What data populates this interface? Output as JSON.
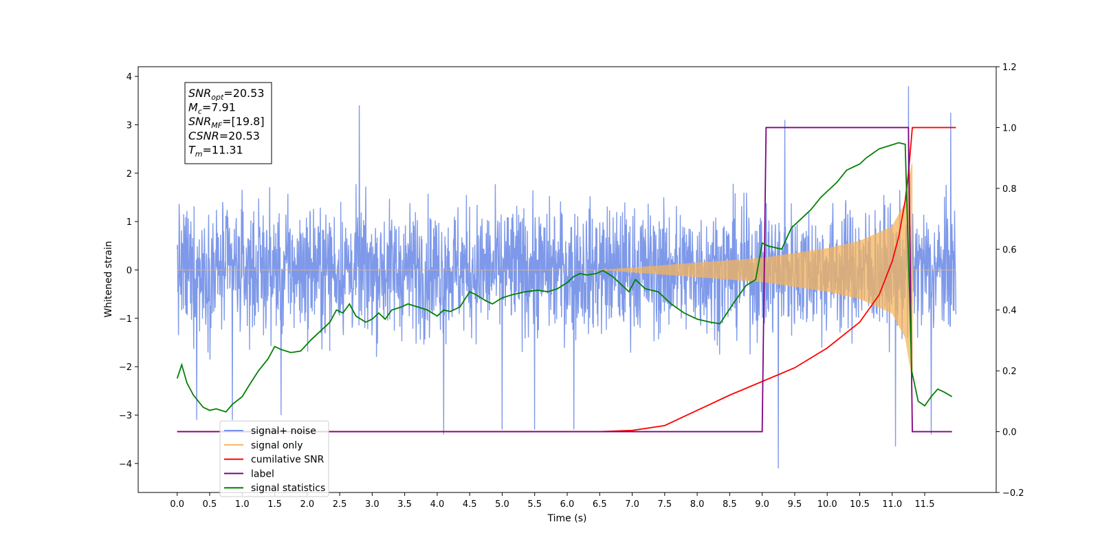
{
  "chart_data": {
    "type": "line",
    "xlabel": "Time (s)",
    "ylabel_left": "Whitened strain",
    "ylabel_right": "",
    "xlim": [
      -0.6,
      12.6
    ],
    "ylim_left": [
      -4.6,
      4.2
    ],
    "ylim_right": [
      -0.2,
      1.2
    ],
    "x_ticks": [
      "0.0",
      "0.5",
      "1.0",
      "1.5",
      "2.0",
      "2.5",
      "3.0",
      "3.5",
      "4.0",
      "4.5",
      "5.0",
      "5.5",
      "6.0",
      "6.5",
      "7.0",
      "7.5",
      "8.0",
      "8.5",
      "9.0",
      "9.5",
      "10.0",
      "10.5",
      "11.0",
      "11.5"
    ],
    "y_ticks_left": [
      "4",
      "3",
      "2",
      "1",
      "0",
      "−1",
      "−2",
      "−3",
      "−4"
    ],
    "y_ticks_right": [
      "1.2",
      "1.0",
      "0.8",
      "0.6",
      "0.4",
      "0.2",
      "0.0",
      "−0.2"
    ],
    "grid": false,
    "legend_position": "lower-left",
    "info_box": [
      {
        "base": "SNR",
        "sub": "opt",
        "value": "=20.53"
      },
      {
        "base": "M",
        "sub": "c",
        "value": "=7.91"
      },
      {
        "base": "SNR",
        "sub": "MF",
        "value": "=[19.8]"
      },
      {
        "base": "CSNR",
        "sub": "",
        "value": "=20.53"
      },
      {
        "base": "T",
        "sub": "m",
        "value": "=11.31"
      }
    ],
    "series": [
      {
        "name": "signal+ noise",
        "axis": "left",
        "color": "#7793e8",
        "description_kind": "noise",
        "x_range": [
          0.0,
          11.98
        ],
        "sigma": 0.65,
        "extremes": [
          [
            2.8,
            3.4
          ],
          [
            11.25,
            3.8
          ],
          [
            11.9,
            3.25
          ],
          [
            9.35,
            3.1
          ],
          [
            9.25,
            -4.1
          ],
          [
            11.05,
            -3.65
          ],
          [
            4.1,
            -3.4
          ],
          [
            6.1,
            -3.3
          ],
          [
            5.0,
            -3.3
          ],
          [
            5.5,
            -3.3
          ],
          [
            11.6,
            -3.4
          ],
          [
            0.85,
            -3.1
          ],
          [
            1.6,
            -3.0
          ],
          [
            0.3,
            -3.1
          ]
        ]
      },
      {
        "name": "signal only",
        "axis": "left",
        "color": "#f5b45c",
        "description_kind": "chirp",
        "t_start": 6.5,
        "t_merger": 11.31,
        "envelope": [
          [
            6.5,
            0.0
          ],
          [
            7.0,
            0.05
          ],
          [
            8.0,
            0.15
          ],
          [
            9.0,
            0.25
          ],
          [
            10.0,
            0.45
          ],
          [
            10.5,
            0.6
          ],
          [
            11.0,
            0.9
          ],
          [
            11.2,
            1.4
          ],
          [
            11.3,
            2.2
          ]
        ]
      },
      {
        "name": "cumilative SNR",
        "axis": "right",
        "color": "#ff0000",
        "points": [
          [
            0.0,
            0.0
          ],
          [
            6.5,
            0.0
          ],
          [
            7.0,
            0.004
          ],
          [
            7.5,
            0.02
          ],
          [
            8.0,
            0.07
          ],
          [
            8.5,
            0.12
          ],
          [
            9.0,
            0.165
          ],
          [
            9.5,
            0.21
          ],
          [
            10.0,
            0.275
          ],
          [
            10.5,
            0.36
          ],
          [
            10.8,
            0.45
          ],
          [
            11.0,
            0.56
          ],
          [
            11.1,
            0.64
          ],
          [
            11.2,
            0.76
          ],
          [
            11.25,
            0.85
          ],
          [
            11.31,
            1.0
          ],
          [
            11.98,
            1.0
          ]
        ]
      },
      {
        "name": "label",
        "axis": "right",
        "color": "#800080",
        "points": [
          [
            0.0,
            0.0
          ],
          [
            9.0,
            0.0
          ],
          [
            9.06,
            1.0
          ],
          [
            11.25,
            1.0
          ],
          [
            11.31,
            0.0
          ],
          [
            11.92,
            0.0
          ]
        ]
      },
      {
        "name": "signal statistics",
        "axis": "right",
        "color": "#008000",
        "points": [
          [
            0.0,
            0.175
          ],
          [
            0.07,
            0.22
          ],
          [
            0.15,
            0.16
          ],
          [
            0.25,
            0.12
          ],
          [
            0.4,
            0.08
          ],
          [
            0.5,
            0.07
          ],
          [
            0.6,
            0.075
          ],
          [
            0.75,
            0.065
          ],
          [
            0.85,
            0.09
          ],
          [
            1.0,
            0.115
          ],
          [
            1.1,
            0.15
          ],
          [
            1.25,
            0.2
          ],
          [
            1.4,
            0.24
          ],
          [
            1.5,
            0.28
          ],
          [
            1.6,
            0.27
          ],
          [
            1.75,
            0.26
          ],
          [
            1.9,
            0.265
          ],
          [
            2.05,
            0.3
          ],
          [
            2.2,
            0.33
          ],
          [
            2.35,
            0.36
          ],
          [
            2.45,
            0.4
          ],
          [
            2.55,
            0.39
          ],
          [
            2.65,
            0.42
          ],
          [
            2.75,
            0.38
          ],
          [
            2.9,
            0.36
          ],
          [
            3.0,
            0.37
          ],
          [
            3.1,
            0.39
          ],
          [
            3.2,
            0.37
          ],
          [
            3.3,
            0.4
          ],
          [
            3.45,
            0.41
          ],
          [
            3.55,
            0.42
          ],
          [
            3.7,
            0.41
          ],
          [
            3.85,
            0.4
          ],
          [
            4.0,
            0.38
          ],
          [
            4.1,
            0.4
          ],
          [
            4.2,
            0.395
          ],
          [
            4.35,
            0.41
          ],
          [
            4.5,
            0.46
          ],
          [
            4.6,
            0.45
          ],
          [
            4.75,
            0.43
          ],
          [
            4.85,
            0.42
          ],
          [
            5.0,
            0.44
          ],
          [
            5.15,
            0.45
          ],
          [
            5.35,
            0.46
          ],
          [
            5.55,
            0.465
          ],
          [
            5.7,
            0.46
          ],
          [
            5.85,
            0.47
          ],
          [
            6.0,
            0.49
          ],
          [
            6.1,
            0.51
          ],
          [
            6.2,
            0.52
          ],
          [
            6.3,
            0.515
          ],
          [
            6.45,
            0.52
          ],
          [
            6.55,
            0.53
          ],
          [
            6.7,
            0.51
          ],
          [
            6.85,
            0.48
          ],
          [
            6.95,
            0.46
          ],
          [
            7.05,
            0.5
          ],
          [
            7.2,
            0.47
          ],
          [
            7.4,
            0.46
          ],
          [
            7.6,
            0.42
          ],
          [
            7.8,
            0.39
          ],
          [
            8.0,
            0.37
          ],
          [
            8.2,
            0.36
          ],
          [
            8.35,
            0.355
          ],
          [
            8.55,
            0.42
          ],
          [
            8.75,
            0.48
          ],
          [
            8.9,
            0.5
          ],
          [
            9.0,
            0.62
          ],
          [
            9.1,
            0.61
          ],
          [
            9.3,
            0.6
          ],
          [
            9.45,
            0.67
          ],
          [
            9.6,
            0.7
          ],
          [
            9.75,
            0.73
          ],
          [
            9.9,
            0.77
          ],
          [
            10.0,
            0.79
          ],
          [
            10.15,
            0.82
          ],
          [
            10.3,
            0.86
          ],
          [
            10.5,
            0.88
          ],
          [
            10.6,
            0.9
          ],
          [
            10.8,
            0.93
          ],
          [
            10.95,
            0.94
          ],
          [
            11.1,
            0.95
          ],
          [
            11.2,
            0.945
          ],
          [
            11.3,
            0.2
          ],
          [
            11.4,
            0.1
          ],
          [
            11.5,
            0.085
          ],
          [
            11.6,
            0.115
          ],
          [
            11.7,
            0.14
          ],
          [
            11.8,
            0.13
          ],
          [
            11.92,
            0.115
          ]
        ]
      }
    ]
  },
  "legend": {
    "entries": [
      {
        "label": "signal+ noise",
        "color": "#7793e8"
      },
      {
        "label": "signal only",
        "color": "#f5b45c"
      },
      {
        "label": "cumilative SNR",
        "color": "#ff0000"
      },
      {
        "label": "label",
        "color": "#800080"
      },
      {
        "label": "signal statistics",
        "color": "#008000"
      }
    ]
  }
}
